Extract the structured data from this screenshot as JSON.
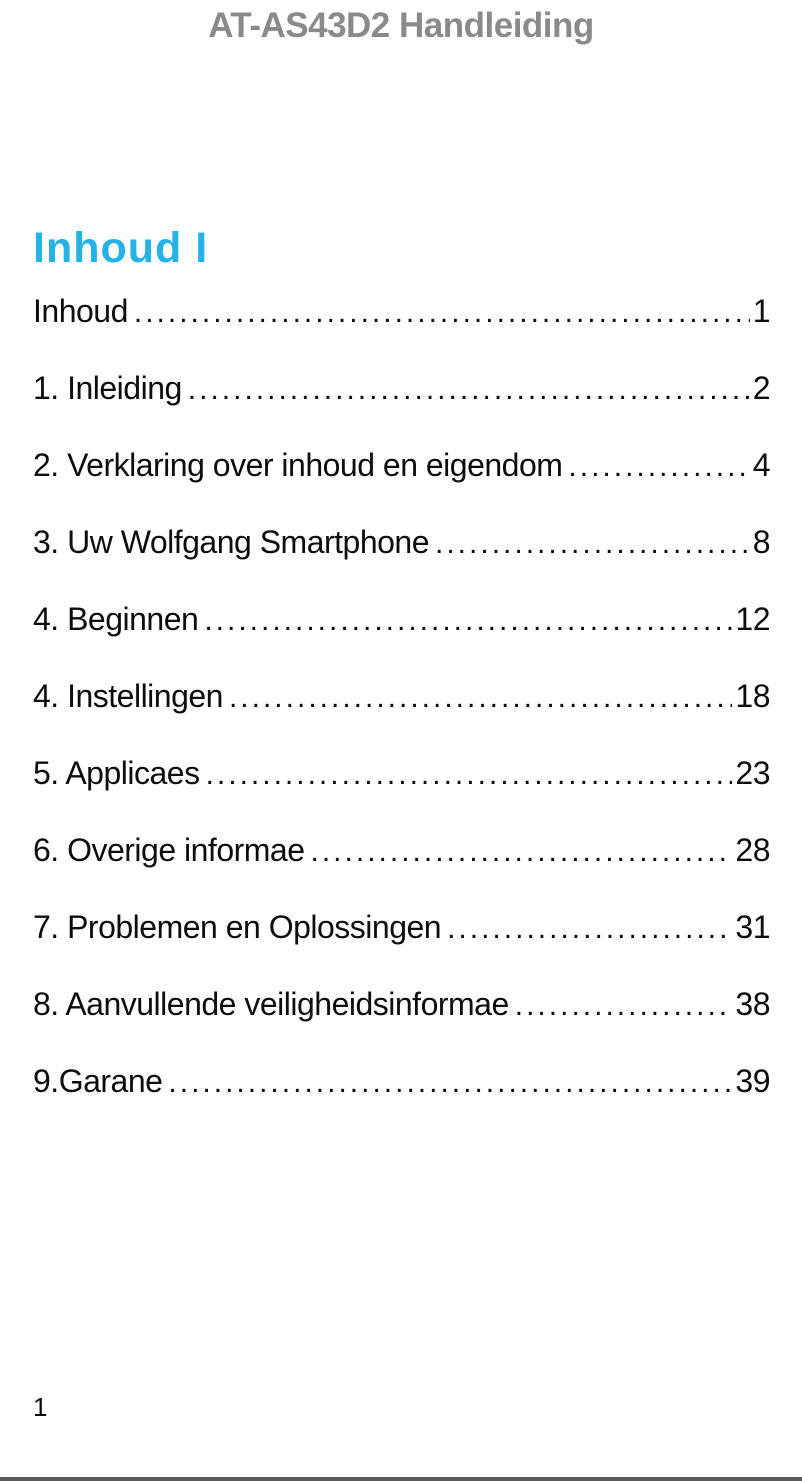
{
  "header": {
    "title": "AT-AS43D2 Handleiding"
  },
  "toc": {
    "heading": "Inhoud I",
    "entries": [
      {
        "label": "Inhoud",
        "page": "1"
      },
      {
        "label": "1. Inleiding",
        "page": "2"
      },
      {
        "label": "2. Verklaring over inhoud en eigendom",
        "page": "4"
      },
      {
        "label": "3. Uw Wolfgang Smartphone",
        "page": "8"
      },
      {
        "label": "4. Beginnen",
        "page": "12"
      },
      {
        "label": "4. Instellingen",
        "page": "18"
      },
      {
        "label": "5. Applicaes",
        "page": "23"
      },
      {
        "label": "6. Overige informae",
        "page": "28"
      },
      {
        "label": "7. Problemen en Oplossingen",
        "page": "31"
      },
      {
        "label": "8. Aanvullende veiligheidsinformae",
        "page": "38"
      },
      {
        "label": "9.Garane",
        "page": "39"
      }
    ]
  },
  "footer": {
    "page_number": "1"
  },
  "colors": {
    "heading_accent": "#25b2e8",
    "header_gray": "#8a8a8a",
    "rule_gray": "#58595b"
  }
}
